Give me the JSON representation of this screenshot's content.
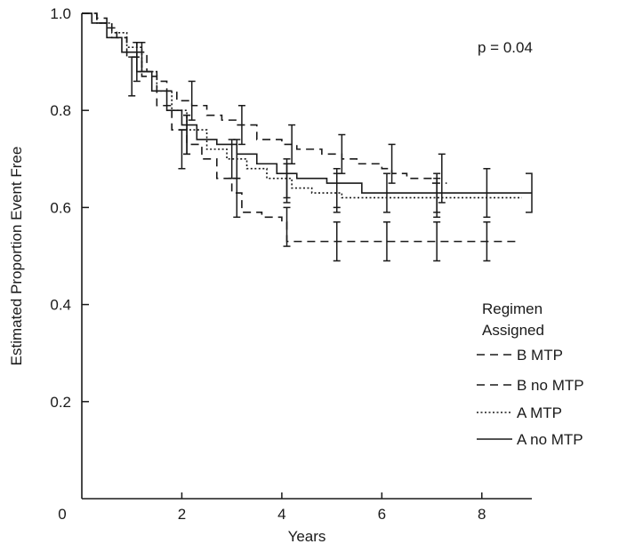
{
  "chart_data": {
    "type": "line",
    "subtype": "kaplan-meier",
    "title": "",
    "xlabel": "Years",
    "ylabel": "Estimated Proportion Event Free",
    "xlim": [
      0,
      9
    ],
    "ylim": [
      0,
      1.0
    ],
    "x_ticks": [
      2,
      4,
      6,
      8
    ],
    "y_ticks": [
      0.2,
      0.4,
      0.6,
      0.8,
      1.0
    ],
    "origin_label": "0",
    "grid": false,
    "annotation": "p = 0.04",
    "legend": {
      "title_lines": [
        "Regimen",
        "Assigned"
      ],
      "position": "right"
    },
    "series": [
      {
        "name": "B MTP",
        "dash": "long-dash",
        "points": [
          [
            0,
            1.0
          ],
          [
            0.2,
            1.0
          ],
          [
            0.3,
            0.99
          ],
          [
            0.5,
            0.97
          ],
          [
            0.7,
            0.95
          ],
          [
            0.9,
            0.94
          ],
          [
            1.1,
            0.92
          ],
          [
            1.3,
            0.88
          ],
          [
            1.5,
            0.86
          ],
          [
            1.7,
            0.84
          ],
          [
            1.9,
            0.82
          ],
          [
            2.2,
            0.81
          ],
          [
            2.5,
            0.79
          ],
          [
            2.8,
            0.78
          ],
          [
            3.1,
            0.77
          ],
          [
            3.5,
            0.74
          ],
          [
            4.0,
            0.73
          ],
          [
            4.3,
            0.72
          ],
          [
            4.8,
            0.71
          ],
          [
            5.2,
            0.7
          ],
          [
            5.5,
            0.69
          ],
          [
            6.0,
            0.68
          ],
          [
            6.2,
            0.67
          ],
          [
            6.5,
            0.66
          ],
          [
            7.0,
            0.65
          ],
          [
            7.3,
            0.65
          ]
        ],
        "error_bars": [
          [
            1.2,
            0.91,
            0.88,
            0.94
          ],
          [
            2.2,
            0.82,
            0.78,
            0.86
          ],
          [
            3.2,
            0.77,
            0.73,
            0.81
          ],
          [
            4.2,
            0.73,
            0.69,
            0.77
          ],
          [
            5.2,
            0.71,
            0.67,
            0.75
          ],
          [
            6.2,
            0.69,
            0.65,
            0.73
          ],
          [
            7.2,
            0.66,
            0.61,
            0.71
          ]
        ]
      },
      {
        "name": "B no MTP",
        "dash": "short-dash",
        "points": [
          [
            0,
            1.0
          ],
          [
            0.3,
            0.98
          ],
          [
            0.6,
            0.95
          ],
          [
            0.9,
            0.91
          ],
          [
            1.2,
            0.87
          ],
          [
            1.5,
            0.81
          ],
          [
            1.8,
            0.76
          ],
          [
            2.1,
            0.73
          ],
          [
            2.4,
            0.7
          ],
          [
            2.7,
            0.66
          ],
          [
            3.0,
            0.63
          ],
          [
            3.2,
            0.59
          ],
          [
            3.6,
            0.58
          ],
          [
            4.0,
            0.57
          ],
          [
            4.1,
            0.53
          ],
          [
            5.0,
            0.53
          ],
          [
            6.0,
            0.53
          ],
          [
            7.0,
            0.53
          ],
          [
            8.0,
            0.53
          ],
          [
            8.7,
            0.53
          ]
        ],
        "error_bars": [
          [
            1.0,
            0.87,
            0.83,
            0.91
          ],
          [
            2.0,
            0.72,
            0.68,
            0.76
          ],
          [
            3.1,
            0.62,
            0.58,
            0.66
          ],
          [
            4.1,
            0.56,
            0.52,
            0.6
          ],
          [
            5.1,
            0.53,
            0.49,
            0.57
          ],
          [
            6.1,
            0.53,
            0.49,
            0.57
          ],
          [
            7.1,
            0.53,
            0.49,
            0.57
          ],
          [
            8.1,
            0.53,
            0.49,
            0.57
          ]
        ]
      },
      {
        "name": "A MTP",
        "dash": "dotted",
        "points": [
          [
            0,
            1.0
          ],
          [
            0.3,
            0.98
          ],
          [
            0.6,
            0.96
          ],
          [
            0.9,
            0.93
          ],
          [
            1.2,
            0.88
          ],
          [
            1.5,
            0.84
          ],
          [
            1.8,
            0.8
          ],
          [
            2.1,
            0.76
          ],
          [
            2.5,
            0.72
          ],
          [
            2.9,
            0.7
          ],
          [
            3.3,
            0.68
          ],
          [
            3.7,
            0.66
          ],
          [
            4.2,
            0.64
          ],
          [
            4.6,
            0.63
          ],
          [
            5.2,
            0.62
          ],
          [
            6.0,
            0.62
          ],
          [
            7.0,
            0.62
          ],
          [
            8.0,
            0.62
          ],
          [
            8.8,
            0.62
          ]
        ],
        "error_bars": [
          [
            2.1,
            0.75,
            0.71,
            0.79
          ],
          [
            3.0,
            0.7,
            0.66,
            0.74
          ],
          [
            4.1,
            0.65,
            0.61,
            0.69
          ],
          [
            5.1,
            0.63,
            0.59,
            0.67
          ],
          [
            7.1,
            0.62,
            0.58,
            0.66
          ]
        ]
      },
      {
        "name": "A no MTP",
        "dash": "solid",
        "points": [
          [
            0,
            1.0
          ],
          [
            0.2,
            0.98
          ],
          [
            0.5,
            0.95
          ],
          [
            0.8,
            0.92
          ],
          [
            1.1,
            0.88
          ],
          [
            1.4,
            0.84
          ],
          [
            1.7,
            0.8
          ],
          [
            2.0,
            0.77
          ],
          [
            2.3,
            0.74
          ],
          [
            2.7,
            0.73
          ],
          [
            3.1,
            0.71
          ],
          [
            3.5,
            0.69
          ],
          [
            3.9,
            0.67
          ],
          [
            4.3,
            0.66
          ],
          [
            4.9,
            0.65
          ],
          [
            5.6,
            0.63
          ],
          [
            6.3,
            0.63
          ],
          [
            7.2,
            0.63
          ],
          [
            8.0,
            0.63
          ],
          [
            9.0,
            0.63
          ]
        ],
        "error_bars": [
          [
            1.1,
            0.9,
            0.86,
            0.94
          ],
          [
            2.1,
            0.75,
            0.71,
            0.79
          ],
          [
            3.1,
            0.7,
            0.66,
            0.74
          ],
          [
            4.1,
            0.66,
            0.62,
            0.7
          ],
          [
            5.1,
            0.64,
            0.6,
            0.68
          ],
          [
            6.1,
            0.63,
            0.59,
            0.67
          ],
          [
            7.1,
            0.63,
            0.59,
            0.67
          ],
          [
            8.1,
            0.63,
            0.58,
            0.68
          ]
        ]
      }
    ]
  }
}
